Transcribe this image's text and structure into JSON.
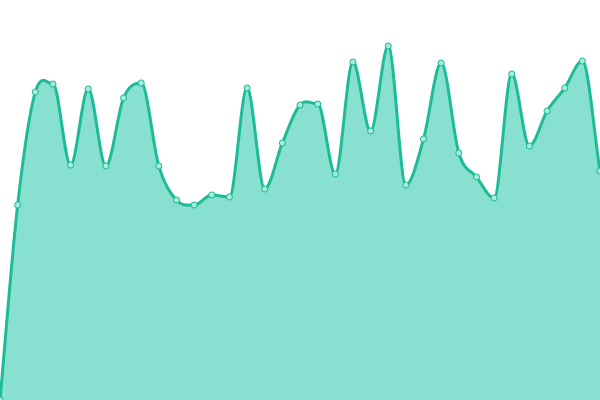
{
  "chart_data": {
    "type": "area",
    "title": "",
    "xlabel": "",
    "ylabel": "",
    "x": [
      0,
      1,
      2,
      3,
      4,
      5,
      6,
      7,
      8,
      9,
      10,
      11,
      12,
      13,
      14,
      15,
      16,
      17,
      18,
      19,
      20,
      21,
      22,
      23,
      24,
      25,
      26,
      27,
      28,
      29,
      30,
      31,
      32,
      33,
      34
    ],
    "series": [
      {
        "values": [
          0,
          195,
          308,
          316,
          235,
          311,
          234,
          302,
          317,
          234,
          200,
          195,
          205,
          203,
          312,
          211,
          257,
          295,
          296,
          226,
          338,
          269,
          354,
          215,
          261,
          337,
          247,
          223,
          202,
          326,
          254,
          289,
          312,
          339,
          229
        ]
      }
    ],
    "ylim": [
      0,
      400
    ],
    "grid": false,
    "axes_visible": false,
    "curve": "smooth",
    "markers": true,
    "colors": {
      "line": "#1dbb97",
      "fill": "#88e0d0",
      "marker_fill": "#a6ebdc"
    }
  }
}
